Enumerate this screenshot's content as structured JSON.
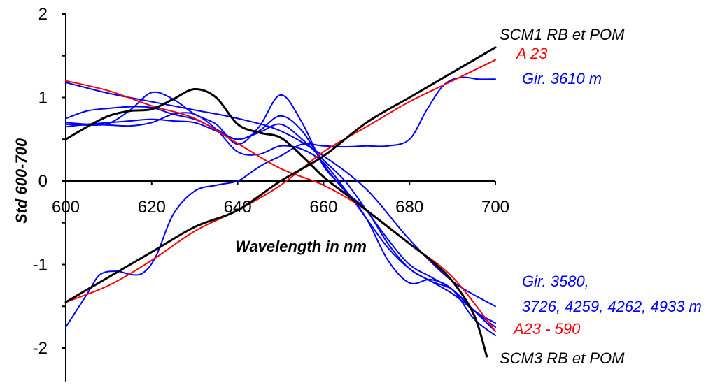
{
  "chart_data": {
    "type": "line",
    "title": "",
    "xlabel": "Wavelength in nm",
    "ylabel": "Std 600-700",
    "xlim": [
      600,
      700
    ],
    "ylim": [
      -2.4,
      2.0
    ],
    "x_ticks": [
      "600",
      "620",
      "640",
      "660",
      "680",
      "700"
    ],
    "y_ticks": [
      "2",
      "1",
      "0",
      "-1",
      "-2"
    ],
    "grid": false,
    "colors": {
      "black": "#000000",
      "red": "#ff0000",
      "blue": "#0000ff"
    },
    "annotations": [
      {
        "text": "SCM1 RB et POM",
        "color": "#000000"
      },
      {
        "text": "A 23",
        "color": "#ff0000"
      },
      {
        "text": "Gir. 3610 m",
        "color": "#0000ff"
      },
      {
        "text": "Gir. 3580,",
        "color": "#0000ff"
      },
      {
        "text": "3726, 4259, 4262, 4933 m",
        "color": "#0000ff"
      },
      {
        "text": "A23 - 590",
        "color": "#ff0000"
      },
      {
        "text": "SCM3 RB et POM",
        "color": "#000000"
      }
    ],
    "series": [
      {
        "color": "#000000",
        "width": 3,
        "points": [
          [
            600,
            0.5
          ],
          [
            605,
            0.65
          ],
          [
            610,
            0.78
          ],
          [
            615,
            0.84
          ],
          [
            620,
            0.86
          ],
          [
            625,
            0.98
          ],
          [
            630,
            1.1
          ],
          [
            635,
            1.0
          ],
          [
            640,
            0.68
          ],
          [
            645,
            0.58
          ],
          [
            650,
            0.52
          ],
          [
            655,
            0.3
          ],
          [
            660,
            0.05
          ],
          [
            665,
            -0.15
          ],
          [
            670,
            -0.35
          ],
          [
            675,
            -0.55
          ],
          [
            680,
            -0.75
          ],
          [
            685,
            -0.95
          ],
          [
            690,
            -1.2
          ],
          [
            695,
            -1.6
          ],
          [
            698,
            -2.1
          ]
        ]
      },
      {
        "color": "#ff0000",
        "width": 2,
        "points": [
          [
            600,
            1.2
          ],
          [
            610,
            1.08
          ],
          [
            620,
            0.9
          ],
          [
            630,
            0.75
          ],
          [
            640,
            0.45
          ],
          [
            650,
            0.15
          ],
          [
            660,
            -0.05
          ],
          [
            670,
            -0.35
          ],
          [
            680,
            -0.75
          ],
          [
            690,
            -1.15
          ],
          [
            700,
            -1.8
          ]
        ]
      },
      {
        "color": "#0000ff",
        "width": 2,
        "points": [
          [
            600,
            1.18
          ],
          [
            610,
            1.05
          ],
          [
            620,
            0.95
          ],
          [
            630,
            0.85
          ],
          [
            640,
            0.75
          ],
          [
            650,
            0.6
          ],
          [
            660,
            0.3
          ],
          [
            670,
            -0.1
          ],
          [
            680,
            -0.7
          ],
          [
            690,
            -1.2
          ],
          [
            700,
            -1.5
          ]
        ]
      },
      {
        "color": "#0000ff",
        "width": 2,
        "points": [
          [
            600,
            0.75
          ],
          [
            605,
            0.84
          ],
          [
            610,
            0.87
          ],
          [
            615,
            0.89
          ],
          [
            620,
            0.88
          ],
          [
            625,
            0.8
          ],
          [
            630,
            0.74
          ],
          [
            635,
            0.62
          ],
          [
            640,
            0.5
          ],
          [
            645,
            0.6
          ],
          [
            650,
            0.78
          ],
          [
            655,
            0.6
          ],
          [
            660,
            0.2
          ],
          [
            665,
            -0.12
          ],
          [
            670,
            -0.35
          ],
          [
            675,
            -0.75
          ],
          [
            680,
            -1.05
          ],
          [
            685,
            -1.2
          ],
          [
            690,
            -1.35
          ],
          [
            695,
            -1.55
          ],
          [
            700,
            -1.75
          ]
        ]
      },
      {
        "color": "#0000ff",
        "width": 2,
        "points": [
          [
            600,
            0.68
          ],
          [
            605,
            0.67
          ],
          [
            610,
            0.69
          ],
          [
            615,
            0.85
          ],
          [
            620,
            1.06
          ],
          [
            625,
            0.98
          ],
          [
            630,
            0.8
          ],
          [
            635,
            0.68
          ],
          [
            640,
            0.44
          ],
          [
            645,
            0.65
          ],
          [
            650,
            1.03
          ],
          [
            655,
            0.7
          ],
          [
            660,
            0.18
          ],
          [
            665,
            -0.1
          ],
          [
            670,
            -0.45
          ],
          [
            675,
            -0.95
          ],
          [
            680,
            -1.22
          ],
          [
            685,
            -1.18
          ],
          [
            690,
            -1.3
          ],
          [
            695,
            -1.65
          ],
          [
            700,
            -1.85
          ]
        ]
      },
      {
        "color": "#0000ff",
        "width": 2,
        "points": [
          [
            600,
            0.65
          ],
          [
            605,
            0.68
          ],
          [
            610,
            0.7
          ],
          [
            615,
            0.72
          ],
          [
            620,
            0.74
          ],
          [
            625,
            0.72
          ],
          [
            630,
            0.7
          ],
          [
            635,
            0.6
          ],
          [
            640,
            0.5
          ],
          [
            645,
            0.58
          ],
          [
            650,
            0.68
          ],
          [
            655,
            0.5
          ],
          [
            660,
            0.25
          ],
          [
            665,
            0.0
          ],
          [
            670,
            -0.35
          ],
          [
            675,
            -0.7
          ],
          [
            680,
            -1.0
          ],
          [
            685,
            -1.15
          ],
          [
            690,
            -1.3
          ],
          [
            695,
            -1.55
          ],
          [
            700,
            -1.7
          ]
        ]
      },
      {
        "color": "#0000ff",
        "width": 2,
        "points": [
          [
            600,
            0.7
          ],
          [
            605,
            0.68
          ],
          [
            610,
            0.67
          ],
          [
            615,
            0.66
          ],
          [
            620,
            0.7
          ],
          [
            625,
            0.8
          ],
          [
            630,
            0.8
          ],
          [
            635,
            0.62
          ],
          [
            640,
            0.35
          ],
          [
            645,
            0.32
          ],
          [
            650,
            0.42
          ],
          [
            655,
            0.38
          ],
          [
            660,
            0.22
          ],
          [
            665,
            -0.1
          ],
          [
            670,
            -0.45
          ],
          [
            675,
            -0.8
          ],
          [
            680,
            -1.05
          ],
          [
            685,
            -1.2
          ],
          [
            690,
            -1.3
          ],
          [
            695,
            -1.55
          ],
          [
            700,
            -1.8
          ]
        ]
      },
      {
        "color": "#000000",
        "width": 3,
        "points": [
          [
            600,
            -1.45
          ],
          [
            610,
            -1.15
          ],
          [
            620,
            -0.85
          ],
          [
            630,
            -0.55
          ],
          [
            640,
            -0.35
          ],
          [
            650,
            0.0
          ],
          [
            660,
            0.3
          ],
          [
            670,
            0.7
          ],
          [
            680,
            1.0
          ],
          [
            690,
            1.3
          ],
          [
            700,
            1.6
          ]
        ]
      },
      {
        "color": "#ff0000",
        "width": 2,
        "points": [
          [
            600,
            -1.45
          ],
          [
            610,
            -1.25
          ],
          [
            620,
            -0.95
          ],
          [
            630,
            -0.6
          ],
          [
            640,
            -0.35
          ],
          [
            650,
            -0.05
          ],
          [
            660,
            0.35
          ],
          [
            670,
            0.65
          ],
          [
            680,
            0.95
          ],
          [
            690,
            1.2
          ],
          [
            700,
            1.45
          ]
        ]
      },
      {
        "color": "#0000ff",
        "width": 2,
        "points": [
          [
            600,
            -1.75
          ],
          [
            605,
            -1.35
          ],
          [
            608,
            -1.12
          ],
          [
            612,
            -1.08
          ],
          [
            615,
            -1.12
          ],
          [
            618,
            -1.1
          ],
          [
            621,
            -0.9
          ],
          [
            625,
            -0.4
          ],
          [
            630,
            -0.12
          ],
          [
            635,
            -0.05
          ],
          [
            640,
            0.0
          ],
          [
            643,
            0.1
          ],
          [
            646,
            0.2
          ],
          [
            650,
            0.3
          ],
          [
            655,
            0.44
          ],
          [
            660,
            0.42
          ],
          [
            665,
            0.41
          ],
          [
            670,
            0.42
          ],
          [
            675,
            0.42
          ],
          [
            680,
            0.5
          ],
          [
            684,
            0.85
          ],
          [
            688,
            1.15
          ],
          [
            692,
            1.24
          ],
          [
            696,
            1.22
          ],
          [
            700,
            1.22
          ]
        ]
      }
    ]
  }
}
